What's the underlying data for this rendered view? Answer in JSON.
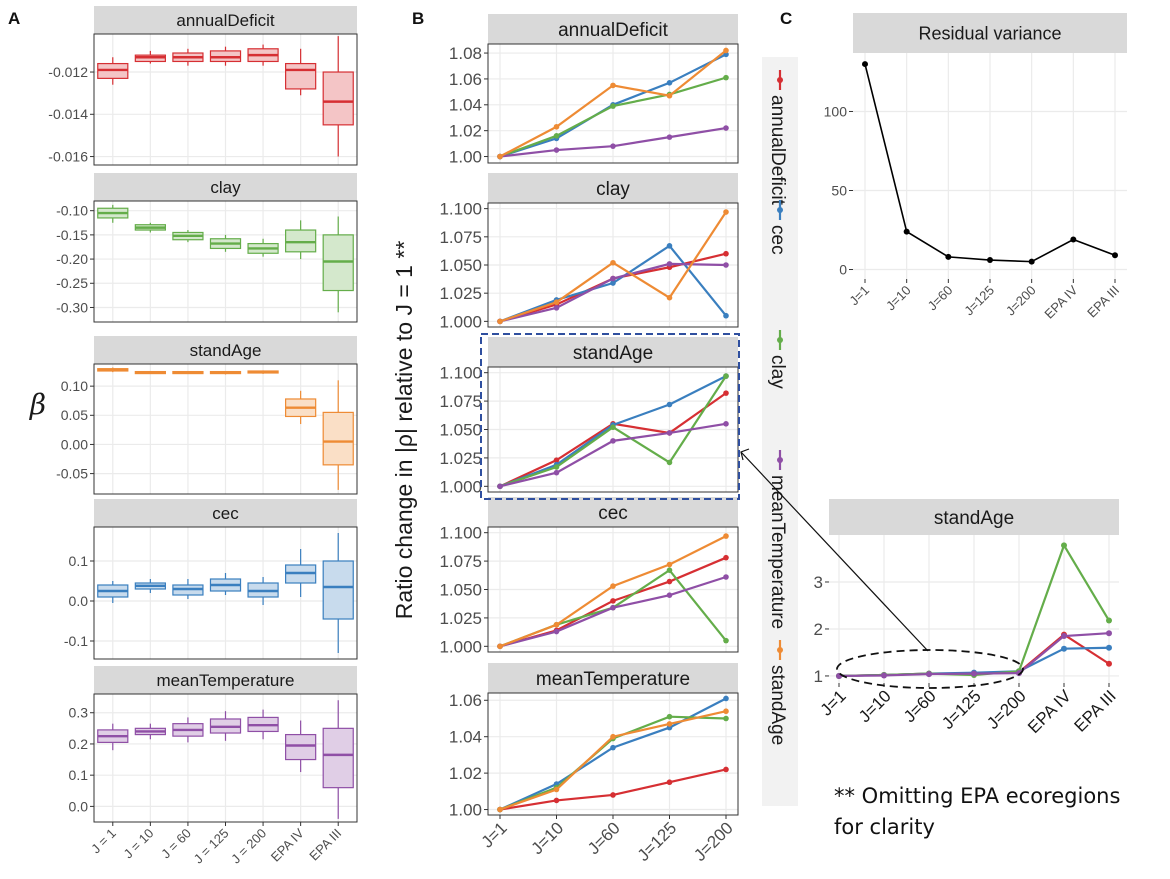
{
  "colors": {
    "annualDeficit": "#d62f33",
    "clay": "#64ad4a",
    "standAge": "#ee8b34",
    "cec": "#3a7fbf",
    "meanTemperature": "#8f4fa6",
    "strip": "#d9d9d9",
    "grid": "#ebebeb",
    "panel_border": "#333333",
    "highlight": "#2f4f9f"
  },
  "panel_labels": {
    "a": "A",
    "b": "B",
    "c": "C"
  },
  "footnote": {
    "line1": "** Omitting EPA ecoregions",
    "line2": "for clarity"
  },
  "chart_data": [
    {
      "id": "A",
      "type": "box",
      "title": "",
      "ylabel": "β",
      "categories": [
        "J = 1",
        "J = 10",
        "J = 60",
        "J = 125",
        "J = 200",
        "EPA IV",
        "EPA III"
      ],
      "facets": [
        {
          "name": "annualDeficit",
          "color_key": "annualDeficit",
          "ylim": [
            -0.0164,
            -0.0102
          ],
          "ticks": [
            -0.012,
            -0.014,
            -0.016
          ],
          "tick_labels": [
            "-0.012",
            "-0.014",
            "-0.016"
          ],
          "boxes": [
            {
              "min": -0.0126,
              "q1": -0.0123,
              "median": -0.0119,
              "q3": -0.0116,
              "max": -0.0113
            },
            {
              "min": -0.0116,
              "q1": -0.0115,
              "median": -0.0113,
              "q3": -0.0112,
              "max": -0.011
            },
            {
              "min": -0.0117,
              "q1": -0.0115,
              "median": -0.0113,
              "q3": -0.0111,
              "max": -0.0109
            },
            {
              "min": -0.0117,
              "q1": -0.0115,
              "median": -0.0113,
              "q3": -0.011,
              "max": -0.0108
            },
            {
              "min": -0.0117,
              "q1": -0.0115,
              "median": -0.0112,
              "q3": -0.0109,
              "max": -0.0107
            },
            {
              "min": -0.0131,
              "q1": -0.0128,
              "median": -0.0119,
              "q3": -0.0116,
              "max": -0.0109
            },
            {
              "min": -0.016,
              "q1": -0.0145,
              "median": -0.0134,
              "q3": -0.012,
              "max": -0.0103
            }
          ]
        },
        {
          "name": "clay",
          "color_key": "clay",
          "ylim": [
            -0.33,
            -0.08
          ],
          "ticks": [
            -0.1,
            -0.15,
            -0.2,
            -0.25,
            -0.3
          ],
          "tick_labels": [
            "-0.10",
            "-0.15",
            "-0.20",
            "-0.25",
            "-0.30"
          ],
          "boxes": [
            {
              "min": -0.125,
              "q1": -0.115,
              "median": -0.105,
              "q3": -0.095,
              "max": -0.088
            },
            {
              "min": -0.145,
              "q1": -0.14,
              "median": -0.135,
              "q3": -0.129,
              "max": -0.125
            },
            {
              "min": -0.165,
              "q1": -0.16,
              "median": -0.152,
              "q3": -0.145,
              "max": -0.14
            },
            {
              "min": -0.185,
              "q1": -0.178,
              "median": -0.168,
              "q3": -0.158,
              "max": -0.15
            },
            {
              "min": -0.195,
              "q1": -0.188,
              "median": -0.178,
              "q3": -0.168,
              "max": -0.158
            },
            {
              "min": -0.2,
              "q1": -0.185,
              "median": -0.165,
              "q3": -0.14,
              "max": -0.12
            },
            {
              "min": -0.31,
              "q1": -0.265,
              "median": -0.205,
              "q3": -0.15,
              "max": -0.112
            }
          ]
        },
        {
          "name": "standAge",
          "color_key": "standAge",
          "ylim": [
            -0.085,
            0.138
          ],
          "ticks": [
            0.1,
            0.05,
            0.0,
            -0.05
          ],
          "tick_labels": [
            "0.10",
            "0.05",
            "0.00",
            "-0.05"
          ],
          "boxes": [
            {
              "min": 0.124,
              "q1": 0.126,
              "median": 0.128,
              "q3": 0.13,
              "max": 0.132
            },
            {
              "min": 0.122,
              "q1": 0.123,
              "median": 0.124,
              "q3": 0.125,
              "max": 0.126
            },
            {
              "min": 0.121,
              "q1": 0.123,
              "median": 0.124,
              "q3": 0.125,
              "max": 0.126
            },
            {
              "min": 0.12,
              "q1": 0.122,
              "median": 0.124,
              "q3": 0.125,
              "max": 0.126
            },
            {
              "min": 0.121,
              "q1": 0.123,
              "median": 0.124,
              "q3": 0.126,
              "max": 0.127
            },
            {
              "min": 0.035,
              "q1": 0.048,
              "median": 0.063,
              "q3": 0.078,
              "max": 0.092
            },
            {
              "min": -0.078,
              "q1": -0.035,
              "median": 0.005,
              "q3": 0.055,
              "max": 0.11
            }
          ]
        },
        {
          "name": "cec",
          "color_key": "cec",
          "ylim": [
            -0.145,
            0.185
          ],
          "ticks": [
            0.1,
            0.0,
            -0.1
          ],
          "tick_labels": [
            "0.1",
            "0.0",
            "-0.1"
          ],
          "boxes": [
            {
              "min": -0.005,
              "q1": 0.01,
              "median": 0.025,
              "q3": 0.04,
              "max": 0.05
            },
            {
              "min": 0.02,
              "q1": 0.03,
              "median": 0.038,
              "q3": 0.045,
              "max": 0.055
            },
            {
              "min": 0.005,
              "q1": 0.015,
              "median": 0.03,
              "q3": 0.04,
              "max": 0.055
            },
            {
              "min": 0.015,
              "q1": 0.025,
              "median": 0.04,
              "q3": 0.055,
              "max": 0.07
            },
            {
              "min": -0.01,
              "q1": 0.01,
              "median": 0.025,
              "q3": 0.045,
              "max": 0.06
            },
            {
              "min": 0.01,
              "q1": 0.045,
              "median": 0.07,
              "q3": 0.09,
              "max": 0.13
            },
            {
              "min": -0.13,
              "q1": -0.045,
              "median": 0.035,
              "q3": 0.1,
              "max": 0.17
            }
          ]
        },
        {
          "name": "meanTemperature",
          "color_key": "meanTemperature",
          "ylim": [
            -0.05,
            0.36
          ],
          "ticks": [
            0.3,
            0.2,
            0.1,
            0.0
          ],
          "tick_labels": [
            "0.3",
            "0.2",
            "0.1",
            "0.0"
          ],
          "boxes": [
            {
              "min": 0.18,
              "q1": 0.205,
              "median": 0.225,
              "q3": 0.245,
              "max": 0.265
            },
            {
              "min": 0.215,
              "q1": 0.23,
              "median": 0.24,
              "q3": 0.25,
              "max": 0.265
            },
            {
              "min": 0.205,
              "q1": 0.225,
              "median": 0.245,
              "q3": 0.265,
              "max": 0.285
            },
            {
              "min": 0.21,
              "q1": 0.235,
              "median": 0.255,
              "q3": 0.28,
              "max": 0.305
            },
            {
              "min": 0.215,
              "q1": 0.24,
              "median": 0.26,
              "q3": 0.285,
              "max": 0.31
            },
            {
              "min": 0.11,
              "q1": 0.15,
              "median": 0.195,
              "q3": 0.23,
              "max": 0.275
            },
            {
              "min": -0.04,
              "q1": 0.06,
              "median": 0.165,
              "q3": 0.25,
              "max": 0.34
            }
          ]
        }
      ]
    },
    {
      "id": "B",
      "type": "line",
      "ylabel": "Ratio change in |ρ| relative to J = 1 **",
      "x": [
        "J=1",
        "J=10",
        "J=60",
        "J=125",
        "J=200"
      ],
      "legend": [
        "annualDeficit",
        "cec",
        "clay",
        "meanTemperature",
        "standAge"
      ],
      "legend_position": "right",
      "highlighted_facet": "standAge",
      "facets": [
        {
          "name": "annualDeficit",
          "ylim": [
            0.995,
            1.087
          ],
          "ticks": [
            1.0,
            1.02,
            1.04,
            1.06,
            1.08
          ],
          "tick_labels": [
            "1.00",
            "1.02",
            "1.04",
            "1.06",
            "1.08"
          ],
          "series": [
            {
              "name": "cec",
              "values": [
                1.0,
                1.014,
                1.04,
                1.057,
                1.079
              ]
            },
            {
              "name": "clay",
              "values": [
                1.0,
                1.016,
                1.039,
                1.048,
                1.061
              ]
            },
            {
              "name": "meanTemperature",
              "values": [
                1.0,
                1.005,
                1.008,
                1.015,
                1.022
              ]
            },
            {
              "name": "standAge",
              "values": [
                1.0,
                1.023,
                1.055,
                1.047,
                1.082
              ]
            }
          ]
        },
        {
          "name": "clay",
          "ylim": [
            0.995,
            1.105
          ],
          "ticks": [
            1.0,
            1.025,
            1.05,
            1.075,
            1.1
          ],
          "tick_labels": [
            "1.000",
            "1.025",
            "1.050",
            "1.075",
            "1.100"
          ],
          "series": [
            {
              "name": "annualDeficit",
              "values": [
                1.0,
                1.015,
                1.038,
                1.048,
                1.06
              ]
            },
            {
              "name": "cec",
              "values": [
                1.0,
                1.019,
                1.034,
                1.067,
                1.005
              ]
            },
            {
              "name": "meanTemperature",
              "values": [
                1.0,
                1.012,
                1.038,
                1.051,
                1.05
              ]
            },
            {
              "name": "standAge",
              "values": [
                1.0,
                1.017,
                1.052,
                1.021,
                1.097
              ]
            }
          ]
        },
        {
          "name": "standAge",
          "ylim": [
            0.995,
            1.105
          ],
          "ticks": [
            1.0,
            1.025,
            1.05,
            1.075,
            1.1
          ],
          "tick_labels": [
            "1.000",
            "1.025",
            "1.050",
            "1.075",
            "1.100"
          ],
          "series": [
            {
              "name": "annualDeficit",
              "values": [
                1.0,
                1.023,
                1.055,
                1.047,
                1.082
              ]
            },
            {
              "name": "cec",
              "values": [
                1.0,
                1.019,
                1.054,
                1.072,
                1.097
              ]
            },
            {
              "name": "clay",
              "values": [
                1.0,
                1.017,
                1.052,
                1.021,
                1.097
              ]
            },
            {
              "name": "meanTemperature",
              "values": [
                1.0,
                1.012,
                1.04,
                1.047,
                1.055
              ]
            }
          ]
        },
        {
          "name": "cec",
          "ylim": [
            0.995,
            1.105
          ],
          "ticks": [
            1.0,
            1.025,
            1.05,
            1.075,
            1.1
          ],
          "tick_labels": [
            "1.000",
            "1.025",
            "1.050",
            "1.075",
            "1.100"
          ],
          "series": [
            {
              "name": "annualDeficit",
              "values": [
                1.0,
                1.014,
                1.04,
                1.057,
                1.078
              ]
            },
            {
              "name": "clay",
              "values": [
                1.0,
                1.019,
                1.034,
                1.067,
                1.005
              ]
            },
            {
              "name": "meanTemperature",
              "values": [
                1.0,
                1.013,
                1.034,
                1.045,
                1.061
              ]
            },
            {
              "name": "standAge",
              "values": [
                1.0,
                1.019,
                1.053,
                1.072,
                1.097
              ]
            }
          ]
        },
        {
          "name": "meanTemperature",
          "ylim": [
            0.997,
            1.064
          ],
          "ticks": [
            1.0,
            1.02,
            1.04,
            1.06
          ],
          "tick_labels": [
            "1.00",
            "1.02",
            "1.04",
            "1.06"
          ],
          "series": [
            {
              "name": "annualDeficit",
              "values": [
                1.0,
                1.005,
                1.008,
                1.015,
                1.022
              ]
            },
            {
              "name": "cec",
              "values": [
                1.0,
                1.014,
                1.034,
                1.045,
                1.061
              ]
            },
            {
              "name": "clay",
              "values": [
                1.0,
                1.012,
                1.039,
                1.051,
                1.05
              ]
            },
            {
              "name": "standAge",
              "values": [
                1.0,
                1.011,
                1.04,
                1.047,
                1.054
              ]
            }
          ]
        }
      ]
    },
    {
      "id": "C",
      "type": "line",
      "title": "Residual variance",
      "x": [
        "J=1",
        "J=10",
        "J=60",
        "J=125",
        "J=200",
        "EPA IV",
        "EPA III"
      ],
      "ylim": [
        -6,
        137
      ],
      "ticks": [
        0,
        50,
        100
      ],
      "tick_labels": [
        "0",
        "50",
        "100"
      ],
      "series": [
        {
          "name": "Residual variance",
          "values": [
            130,
            24,
            8,
            6,
            5,
            19,
            9
          ]
        }
      ]
    },
    {
      "id": "C-inset",
      "type": "line",
      "title": "standAge",
      "x": [
        "J=1",
        "J=10",
        "J=60",
        "J=125",
        "J=200",
        "EPA IV",
        "EPA III"
      ],
      "ylim": [
        0.85,
        4.0
      ],
      "ticks": [
        1,
        2,
        3
      ],
      "tick_labels": [
        "1",
        "2",
        "3"
      ],
      "series": [
        {
          "name": "annualDeficit",
          "values": [
            1.0,
            1.02,
            1.05,
            1.05,
            1.08,
            1.88,
            1.26
          ]
        },
        {
          "name": "cec",
          "values": [
            1.0,
            1.02,
            1.05,
            1.07,
            1.1,
            1.58,
            1.6
          ]
        },
        {
          "name": "clay",
          "values": [
            1.0,
            1.02,
            1.05,
            1.02,
            1.1,
            3.78,
            2.18
          ]
        },
        {
          "name": "meanTemperature",
          "values": [
            1.0,
            1.01,
            1.04,
            1.05,
            1.06,
            1.85,
            1.91
          ]
        }
      ]
    }
  ]
}
